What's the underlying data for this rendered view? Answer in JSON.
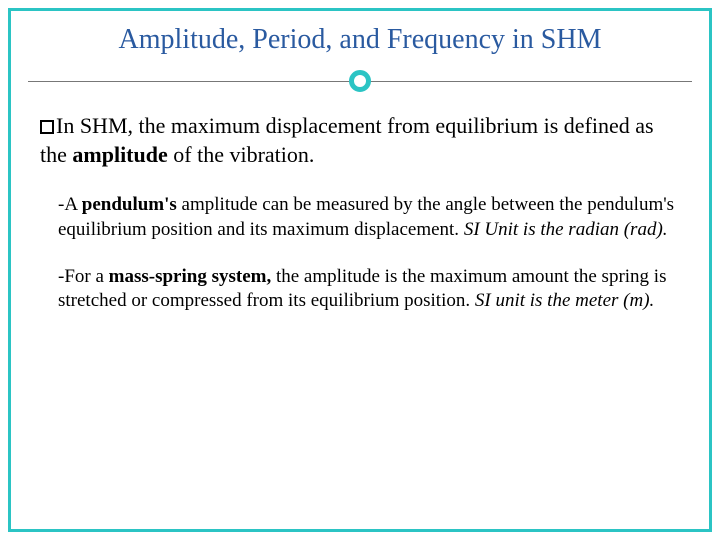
{
  "slide": {
    "title": "Amplitude, Period, and Frequency in SHM",
    "title_color": "#2a5aa0",
    "title_fontsize": 28,
    "accent_color": "#2bc4c4",
    "background_color": "#ffffff",
    "divider_color": "#777777",
    "border_width": 3,
    "main_point": {
      "prefix": "In SHM, the maximum displacement from equilibrium is defined as the ",
      "bold_word": "amplitude",
      "suffix": " of the vibration.",
      "fontsize": 22
    },
    "sub_points": [
      {
        "dash": "-A ",
        "bold": "pendulum's",
        "mid": " amplitude can be measured by the angle between the pendulum's equilibrium position and its maximum displacement. ",
        "italic": "SI Unit is the radian (rad)."
      },
      {
        "dash": "-For a ",
        "bold": "mass-spring system,",
        "mid": " the amplitude is the maximum amount the spring is stretched or compressed from its equilibrium position.  ",
        "italic": "SI unit is the meter (m)."
      }
    ],
    "sub_fontsize": 19
  }
}
